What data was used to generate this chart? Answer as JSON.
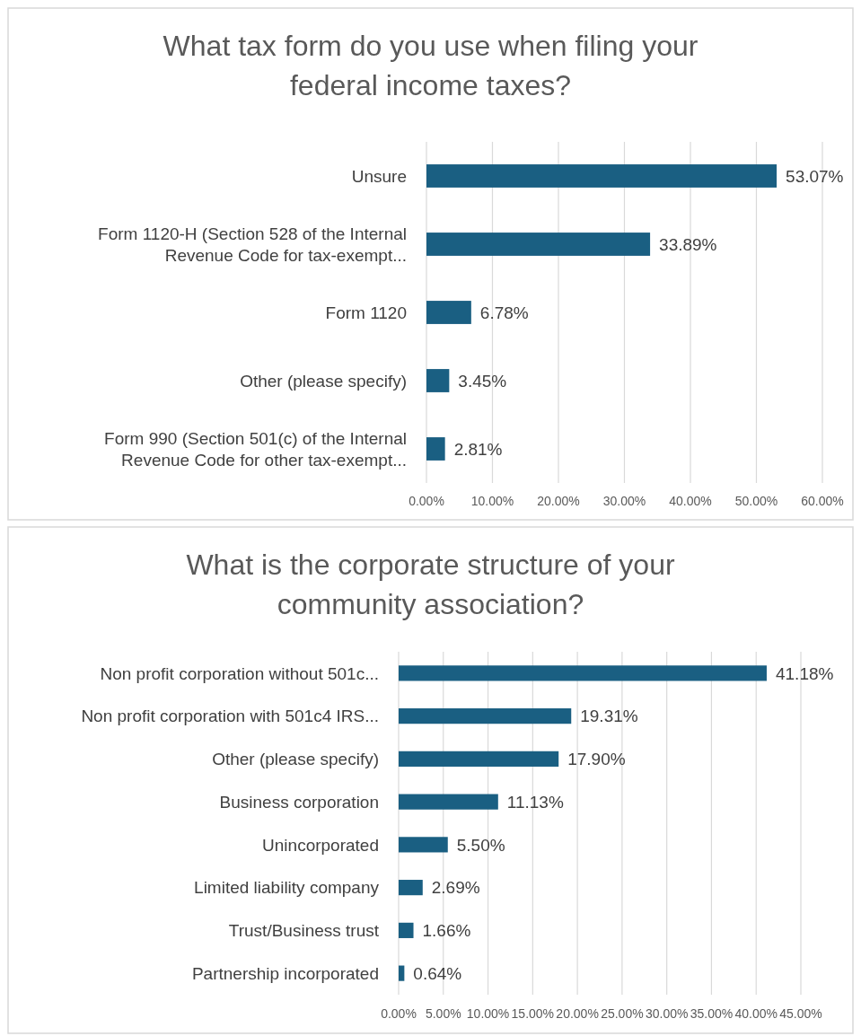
{
  "chart_data": [
    {
      "type": "bar",
      "orientation": "horizontal",
      "title": "What tax form do you use when filing your federal income taxes?",
      "categories": [
        "Unsure",
        "Form 1120-H (Section 528 of the Internal Revenue Code for tax-exempt...",
        "Form 1120",
        "Other (please specify)",
        "Form 990 (Section 501(c) of the Internal Revenue Code for other tax-exempt..."
      ],
      "values": [
        53.07,
        33.89,
        6.78,
        3.45,
        2.81
      ],
      "value_labels": [
        "53.07%",
        "33.89%",
        "6.78%",
        "3.45%",
        "2.81%"
      ],
      "color": "#1a5f82",
      "xlim": [
        0,
        60
      ],
      "xticks": [
        {
          "value": 0,
          "label": "0.00%"
        },
        {
          "value": 10,
          "label": "10.00%"
        },
        {
          "value": 20,
          "label": "20.00%"
        },
        {
          "value": 30,
          "label": "30.00%"
        },
        {
          "value": 40,
          "label": "40.00%"
        },
        {
          "value": 50,
          "label": "50.00%"
        },
        {
          "value": 60,
          "label": "60.00%"
        }
      ],
      "grid": "x"
    },
    {
      "type": "bar",
      "orientation": "horizontal",
      "title": "What is the corporate structure of your community association?",
      "categories": [
        "Non profit corporation without 501c...",
        "Non profit corporation with 501c4 IRS...",
        "Other (please specify)",
        "Business corporation",
        "Unincorporated",
        "Limited liability company",
        "Trust/Business trust",
        "Partnership incorporated"
      ],
      "values": [
        41.18,
        19.31,
        17.9,
        11.13,
        5.5,
        2.69,
        1.66,
        0.64
      ],
      "value_labels": [
        "41.18%",
        "19.31%",
        "17.90%",
        "11.13%",
        "5.50%",
        "2.69%",
        "1.66%",
        "0.64%"
      ],
      "color": "#1a5f82",
      "xlim": [
        0,
        45
      ],
      "xticks": [
        {
          "value": 0,
          "label": "0.00%"
        },
        {
          "value": 5,
          "label": "5.00%"
        },
        {
          "value": 10,
          "label": "10.00%"
        },
        {
          "value": 15,
          "label": "15.00%"
        },
        {
          "value": 20,
          "label": "20.00%"
        },
        {
          "value": 25,
          "label": "25.00%"
        },
        {
          "value": 30,
          "label": "30.00%"
        },
        {
          "value": 35,
          "label": "35.00%"
        },
        {
          "value": 40,
          "label": "40.00%"
        },
        {
          "value": 45,
          "label": "45.00%"
        }
      ],
      "grid": "x"
    }
  ]
}
